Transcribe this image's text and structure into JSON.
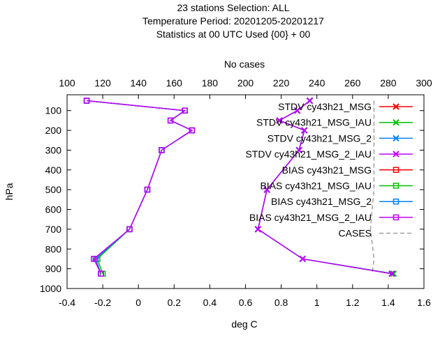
{
  "chart_data": {
    "type": "line",
    "title_lines": [
      "23 stations Selection: ALL",
      "Temperature  Period: 20201205-20201217",
      "Statistics at 00 UTC  Used {00} + 00"
    ],
    "xlabel": "deg C",
    "ylabel": "hPa",
    "x2label": "No cases",
    "xlim": [
      -0.4,
      1.6
    ],
    "ylim": [
      1000,
      20
    ],
    "x2lim": [
      100,
      300
    ],
    "xticks": [
      "-0.4",
      "-0.2",
      "0",
      "0.2",
      "0.4",
      "0.6",
      "0.8",
      "1",
      "1.2",
      "1.4",
      "1.6"
    ],
    "x2ticks": [
      "100",
      "120",
      "140",
      "160",
      "180",
      "200",
      "220",
      "240",
      "260",
      "280",
      "300"
    ],
    "yticks": [
      "100",
      "200",
      "300",
      "400",
      "500",
      "600",
      "700",
      "800",
      "900",
      "1000"
    ],
    "legend_position": "top-right",
    "levels": [
      50,
      100,
      150,
      200,
      300,
      500,
      700,
      850,
      925
    ],
    "series": [
      {
        "name": "STDV cy43h21_MSG",
        "kind": "stdv",
        "color": "#ff0000",
        "marker": "x",
        "x": [
          0.96,
          0.89,
          0.79,
          0.93,
          0.9,
          0.72,
          0.67,
          0.92,
          1.42
        ]
      },
      {
        "name": "STDV cy43h21_MSG_IAU",
        "kind": "stdv",
        "color": "#00c000",
        "marker": "x",
        "x": [
          0.96,
          0.89,
          0.79,
          0.93,
          0.9,
          0.72,
          0.67,
          0.92,
          1.43
        ]
      },
      {
        "name": "STDV cy43h21_MSG_2",
        "kind": "stdv",
        "color": "#0080ff",
        "marker": "x",
        "x": [
          0.96,
          0.89,
          0.79,
          0.93,
          0.9,
          0.72,
          0.67,
          0.92,
          1.42
        ]
      },
      {
        "name": "STDV cy43h21_MSG_2_IAU",
        "kind": "stdv",
        "color": "#c000ff",
        "marker": "x",
        "x": [
          0.96,
          0.89,
          0.79,
          0.93,
          0.9,
          0.72,
          0.67,
          0.92,
          1.42
        ]
      },
      {
        "name": "BIAS cy43h21_MSG",
        "kind": "bias",
        "color": "#ff0000",
        "marker": "square",
        "x": [
          -0.29,
          0.26,
          0.18,
          0.3,
          0.13,
          0.05,
          -0.05,
          -0.24,
          -0.21
        ]
      },
      {
        "name": "BIAS cy43h21_MSG_IAU",
        "kind": "bias",
        "color": "#00c000",
        "marker": "square",
        "x": [
          -0.29,
          0.26,
          0.18,
          0.3,
          0.13,
          0.05,
          -0.05,
          -0.23,
          -0.2
        ]
      },
      {
        "name": "BIAS cy43h21_MSG_2",
        "kind": "bias",
        "color": "#0080ff",
        "marker": "square",
        "x": [
          -0.29,
          0.26,
          0.18,
          0.3,
          0.13,
          0.05,
          -0.05,
          -0.24,
          -0.21
        ]
      },
      {
        "name": "BIAS cy43h21_MSG_2_IAU",
        "kind": "bias",
        "color": "#c000ff",
        "marker": "square",
        "x": [
          -0.29,
          0.26,
          0.18,
          0.3,
          0.13,
          0.05,
          -0.05,
          -0.25,
          -0.21
        ]
      }
    ],
    "cases": {
      "name": "CASES",
      "color": "#a0a0a0",
      "levels": [
        50,
        100,
        150,
        200,
        300,
        500,
        700,
        850,
        925
      ],
      "x2": [
        272,
        272,
        272,
        272,
        272,
        272,
        270,
        272,
        271
      ]
    }
  }
}
